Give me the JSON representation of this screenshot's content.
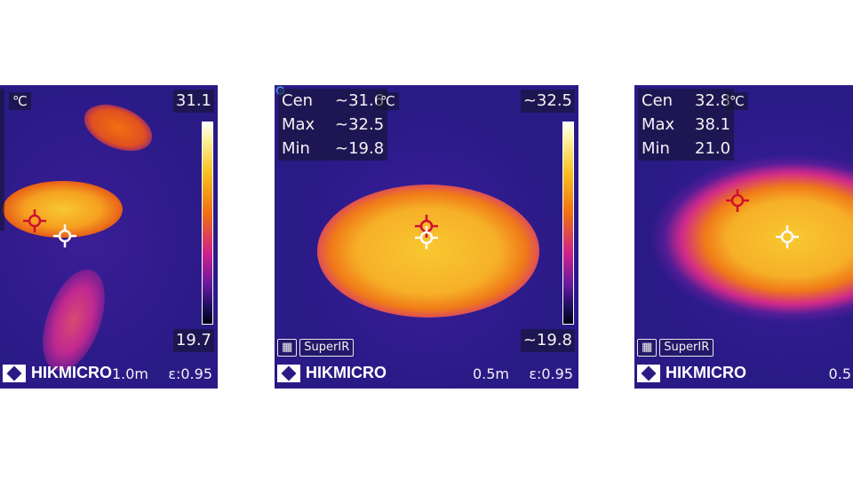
{
  "panels": [
    {
      "unit": "℃",
      "scale_max": "31.1",
      "scale_min": "19.7",
      "brand": "HIKMICRO",
      "distance": "1.0m",
      "emissivity": "ε:0.95"
    },
    {
      "readout": [
        {
          "label": "Cen",
          "value": "~31.6"
        },
        {
          "label": "Max",
          "value": "~32.5"
        },
        {
          "label": "Min",
          "value": "~19.8"
        }
      ],
      "unit": "℃",
      "scale_max": "~32.5",
      "scale_min": "~19.8",
      "badges": [
        "SuperIR"
      ],
      "brand": "HIKMICRO",
      "distance": "0.5m",
      "emissivity": "ε:0.95"
    },
    {
      "readout": [
        {
          "label": "Cen",
          "value": "32.8"
        },
        {
          "label": "Max",
          "value": "38.1"
        },
        {
          "label": "Min",
          "value": "21.0"
        }
      ],
      "unit": "℃",
      "badges": [
        "SuperIR"
      ],
      "brand": "HIKMICRO",
      "distance": "0.5"
    }
  ],
  "icons": {
    "max_marker": "crosshair-red",
    "center_marker": "crosshair-white",
    "layout_badge": "grid-icon",
    "settings": "gear-icon"
  },
  "colors": {
    "background": "#2a1a86",
    "hot": "#f8c020",
    "warm": "#f07010",
    "mid": "#d0208a",
    "marker_red": "#d01030"
  }
}
